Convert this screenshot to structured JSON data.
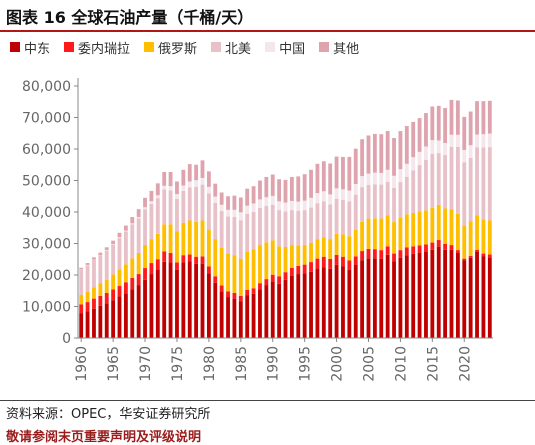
{
  "header": {
    "title": "图表 16 全球石油产量（千桶/天）"
  },
  "footer": {
    "source": "资料来源：OPEC，华安证券研究所",
    "note": "敬请参阅末页重要声明及评级说明"
  },
  "chart_data": {
    "type": "bar",
    "stacked": true,
    "title": "全球石油产量（千桶/天）",
    "ylim": [
      0,
      80000
    ],
    "yticks": [
      0,
      10000,
      20000,
      30000,
      40000,
      50000,
      60000,
      70000,
      80000
    ],
    "ytick_labels": [
      "0",
      "10,000",
      "20,000",
      "30,000",
      "40,000",
      "50,000",
      "60,000",
      "70,000",
      "80,000"
    ],
    "xticks": [
      1960,
      1965,
      1970,
      1975,
      1980,
      1985,
      1990,
      1995,
      2000,
      2005,
      2010,
      2015,
      2020
    ],
    "xtick_labels": [
      "1960",
      "1965",
      "1970",
      "1975",
      "1980",
      "1985",
      "1990",
      "1995",
      "2000",
      "2005",
      "2010",
      "2015",
      "2020"
    ],
    "legend_position": "top",
    "grid": false,
    "x": [
      1960,
      1961,
      1962,
      1963,
      1964,
      1965,
      1966,
      1967,
      1968,
      1969,
      1970,
      1971,
      1972,
      1973,
      1974,
      1975,
      1976,
      1977,
      1978,
      1979,
      1980,
      1981,
      1982,
      1983,
      1984,
      1985,
      1986,
      1987,
      1988,
      1989,
      1990,
      1991,
      1992,
      1993,
      1994,
      1995,
      1996,
      1997,
      1998,
      1999,
      2000,
      2001,
      2002,
      2003,
      2004,
      2005,
      2006,
      2007,
      2008,
      2009,
      2010,
      2011,
      2012,
      2013,
      2014,
      2015,
      2016,
      2017,
      2018,
      2019,
      2020,
      2021,
      2022,
      2023,
      2024
    ],
    "series": [
      {
        "name": "中东",
        "color": "#c00000",
        "values": [
          7900,
          8500,
          9300,
          10200,
          11000,
          12000,
          13200,
          14200,
          15500,
          16800,
          18500,
          20300,
          21800,
          24200,
          24000,
          21700,
          24000,
          24300,
          23600,
          23500,
          20500,
          17500,
          14800,
          13000,
          12500,
          11700,
          13500,
          14000,
          15500,
          16800,
          18000,
          17200,
          18500,
          19800,
          20300,
          20500,
          21000,
          21900,
          22500,
          22000,
          23200,
          22700,
          21700,
          23300,
          24700,
          25300,
          25300,
          25100,
          26400,
          24300,
          25500,
          26300,
          26700,
          27000,
          27300,
          28000,
          29000,
          28000,
          28000,
          27000,
          24600,
          25500,
          27300,
          26000,
          25600
        ]
      },
      {
        "name": "委内瑞拉",
        "color": "#ff1a1a",
        "values": [
          2800,
          2900,
          3200,
          3200,
          3300,
          3400,
          3300,
          3500,
          3600,
          3500,
          3700,
          3500,
          3200,
          3300,
          3000,
          2300,
          2300,
          2200,
          2200,
          2400,
          2200,
          2100,
          1900,
          1800,
          1800,
          1700,
          1800,
          1800,
          1900,
          1900,
          2100,
          2400,
          2400,
          2500,
          2600,
          2800,
          3100,
          3300,
          3300,
          3100,
          3200,
          3100,
          2900,
          2600,
          2900,
          3000,
          2900,
          2800,
          2700,
          2500,
          2400,
          2500,
          2400,
          2400,
          2400,
          2300,
          2100,
          1900,
          1500,
          900,
          600,
          600,
          700,
          800,
          900
        ]
      },
      {
        "name": "俄罗斯",
        "color": "#ffbe00",
        "values": [
          3000,
          3300,
          3600,
          3900,
          4200,
          4800,
          5300,
          5700,
          6200,
          6700,
          7300,
          7600,
          8100,
          8600,
          9100,
          9800,
          10300,
          10800,
          11100,
          11400,
          11700,
          11800,
          11900,
          12000,
          11900,
          11700,
          12000,
          12300,
          12100,
          11700,
          10900,
          9500,
          8000,
          7200,
          6500,
          6300,
          6100,
          6200,
          6200,
          6300,
          6700,
          7100,
          7700,
          8500,
          9300,
          9600,
          9800,
          10000,
          9900,
          10000,
          10300,
          10500,
          10600,
          10800,
          10800,
          11000,
          11200,
          11200,
          11400,
          11500,
          10600,
          10900,
          11000,
          10900,
          10800
        ]
      },
      {
        "name": "北美",
        "color": "#e8c0c8",
        "values": [
          8000,
          8400,
          8700,
          8900,
          9200,
          9400,
          9900,
          10400,
          10800,
          11000,
          11400,
          11200,
          11300,
          11100,
          10800,
          10400,
          10100,
          10500,
          11100,
          11400,
          11500,
          11500,
          11700,
          11800,
          12200,
          12300,
          12100,
          11900,
          11800,
          11500,
          11300,
          11500,
          11300,
          11100,
          11000,
          11000,
          11200,
          11400,
          11400,
          11000,
          11100,
          11000,
          11100,
          11100,
          11000,
          10700,
          10800,
          10800,
          10600,
          10900,
          11300,
          11900,
          13500,
          14700,
          16000,
          17200,
          16400,
          17000,
          19800,
          21300,
          20000,
          20200,
          21500,
          22800,
          23300
        ]
      },
      {
        "name": "中国",
        "color": "#f4e6ea",
        "values": [
          100,
          100,
          100,
          100,
          200,
          200,
          300,
          300,
          300,
          400,
          600,
          800,
          900,
          1100,
          1300,
          1500,
          1700,
          1900,
          2100,
          2100,
          2100,
          2000,
          2000,
          2100,
          2300,
          2500,
          2600,
          2700,
          2700,
          2800,
          2800,
          2800,
          2800,
          2900,
          2900,
          3000,
          3100,
          3200,
          3200,
          3200,
          3300,
          3300,
          3400,
          3400,
          3500,
          3600,
          3700,
          3700,
          3800,
          3800,
          4100,
          4100,
          4200,
          4200,
          4300,
          4300,
          4000,
          3800,
          3800,
          3800,
          3900,
          4000,
          4100,
          4200,
          4300
        ]
      },
      {
        "name": "其他",
        "color": "#dfa3ae",
        "values": [
          500,
          600,
          700,
          800,
          900,
          1100,
          1400,
          1600,
          2000,
          2500,
          3000,
          3300,
          3800,
          4400,
          4500,
          4000,
          5000,
          5500,
          4900,
          5600,
          4900,
          4100,
          3900,
          4300,
          4500,
          4700,
          5400,
          5500,
          6000,
          6400,
          6800,
          7000,
          7200,
          7600,
          8000,
          8400,
          8900,
          9300,
          9500,
          9800,
          10100,
          10300,
          10700,
          11200,
          11700,
          12100,
          12300,
          12300,
          12300,
          12000,
          12100,
          12000,
          11200,
          10700,
          10600,
          10700,
          11000,
          11100,
          11100,
          10900,
          10500,
          10700,
          10600,
          10500,
          10400
        ]
      }
    ]
  }
}
